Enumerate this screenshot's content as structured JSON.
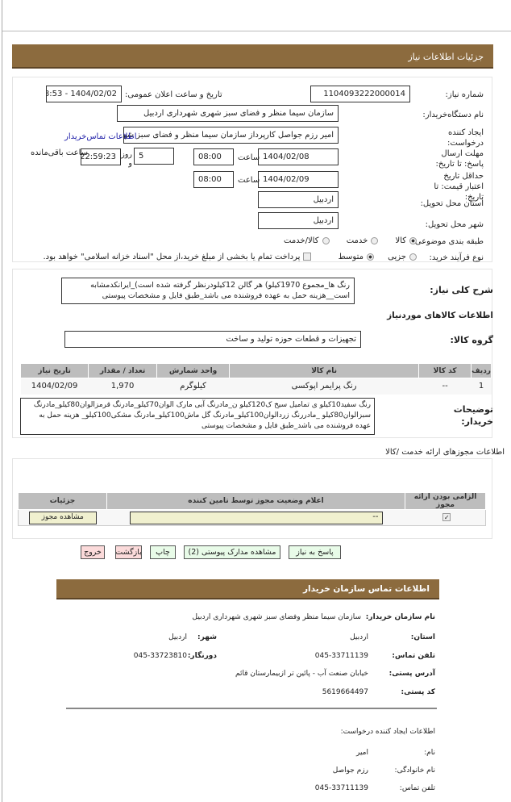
{
  "header": {
    "title": "جزئیات اطلاعات نیاز"
  },
  "form": {
    "need_number_label": "شماره نیاز:",
    "need_number": "1104093222000014",
    "announce_label": "تاریخ و ساعت اعلان عمومی:",
    "announce_value": "1404/02/02 - 08:53",
    "buyer_org_label": "نام دستگاه‌خریدار:",
    "buyer_org": "سازمان سیما منظر و فضای سبز شهری شهرداری اردبیل",
    "creator_label": "ایجاد کننده درخواست:",
    "creator": "امیر رزم جواصل کارپرداز سازمان سیما منظر و فضای سبز شهری شهرداری اردبیل",
    "contact_link": "اطلاعات تماس‌خریدار",
    "deadline_label": "مهلت ارسال پاسخ: تا تاریخ:",
    "deadline_date": "1404/02/08",
    "time_label": "ساعت",
    "deadline_time": "08:00",
    "days_value": "5",
    "days_label": "روز و",
    "remaining_value": "22:59:23",
    "remaining_label": "ساعت باقی‌مانده",
    "validity_label": "حداقل تاریخ اعتبار قیمت: تا تاریخ:",
    "validity_date": "1404/02/09",
    "validity_time": "08:00",
    "province_label": "استان محل تحویل:",
    "province": "اردبیل",
    "city_label": "شهر محل تحویل:",
    "city": "اردبیل",
    "category_label": "طبقه بندی موضوعی:",
    "category_options": [
      "کالا",
      "خدمت",
      "کالا/خدمت"
    ],
    "category_selected": "کالا",
    "process_label": "نوع فرآیند خرید:",
    "process_options": [
      "جزیی",
      "متوسط"
    ],
    "process_selected": "متوسط",
    "payment_note": "پرداخت تمام یا بخشی از مبلغ خرید،از محل \"اسناد خزانه اسلامی\" خواهد بود."
  },
  "description": {
    "label": "شرح کلی نیاز:",
    "text": "رنگ ها_مجموع 1970کیلو) هر گالن 12کیلودرنظر گرفته شده است)_ایرانکدمشابه است__هزینه حمل به عهده فروشنده می باشد_طبق فایل و مشخصات پیوستی"
  },
  "goods": {
    "title": "اطلاعات کالاهای موردنیاز",
    "group_label": "گروه کالا:",
    "group": "تجهیزات و قطعات حوزه تولید و ساخت",
    "columns": [
      "ردیف",
      "کد کالا",
      "نام کالا",
      "واحد شمارش",
      "تعداد / مقدار",
      "تاریخ نیاز"
    ],
    "rows": [
      [
        "1",
        "--",
        "رنگ پرایمر اپوکسی",
        "کیلوگرم",
        "1,970",
        "1404/02/09"
      ]
    ]
  },
  "buyer_notes": {
    "label": "توضیحات خریدار:",
    "text": "رنگ سفید10کیلو ی تمامیل سیخ ک120کیلو ن_مادرنگ آبی مارک الوان70کیلو_مادرنگ قرمزالوان80کیلو_مادرنگ سبزالوان80کیلو _مادررنگ زردالوان100کیلو_مادرنگ گل ماش100کیلو_مادرنگ مشکی100کیلو_ هزینه حمل به عهده فروشنده می باشد_طبق فایل و مشخصات پیوستی"
  },
  "permits": {
    "title": "اطلاعات مجوزهای ارائه خدمت /کالا",
    "columns": [
      "الزامی بودن ارائه مجوز",
      "اعلام وضعیت مجوز توسط تامین کننده",
      "جزئیات"
    ],
    "status_value": "--",
    "view_button": "مشاهده مجوز"
  },
  "buttons": {
    "reply": "پاسخ به نیاز",
    "attachments": "مشاهده مدارک پیوستی (2)",
    "print": "چاپ",
    "back": "بازگشت",
    "exit": "خروج"
  },
  "contact": {
    "title": "اطلاعات تماس سازمان خریدار",
    "org_label": "نام سازمان خریدار:",
    "org": "سازمان سیما منظر وفضای سبز شهری شهرداری اردبیل",
    "province_label": "استان:",
    "province": "اردبیل",
    "city_label": "شهر:",
    "city": "اردبیل",
    "phone_label": "تلفن تماس:",
    "phone": "045-33711139",
    "fax_label": "دورنگار:",
    "fax": "045-33723810",
    "address_label": "آدرس پستی:",
    "address": "خیابان صنعت آب - پائین تر ازبیمارستان قائم",
    "postal_label": "کد پستی:",
    "postal": "5619664497"
  },
  "creator_info": {
    "title": "اطلاعات ایجاد کننده درخواست:",
    "name_label": "نام:",
    "name": "امیر",
    "family_label": "نام خانوادگی:",
    "family": "رزم جواصل",
    "phone_label": "تلفن تماس:",
    "phone": "045-33711139"
  },
  "colors": {
    "header_bar": "#8c6b3e",
    "button_green": "#e8fbe8",
    "button_pink": "#fbdada",
    "permit_field": "#f0f0cf"
  }
}
